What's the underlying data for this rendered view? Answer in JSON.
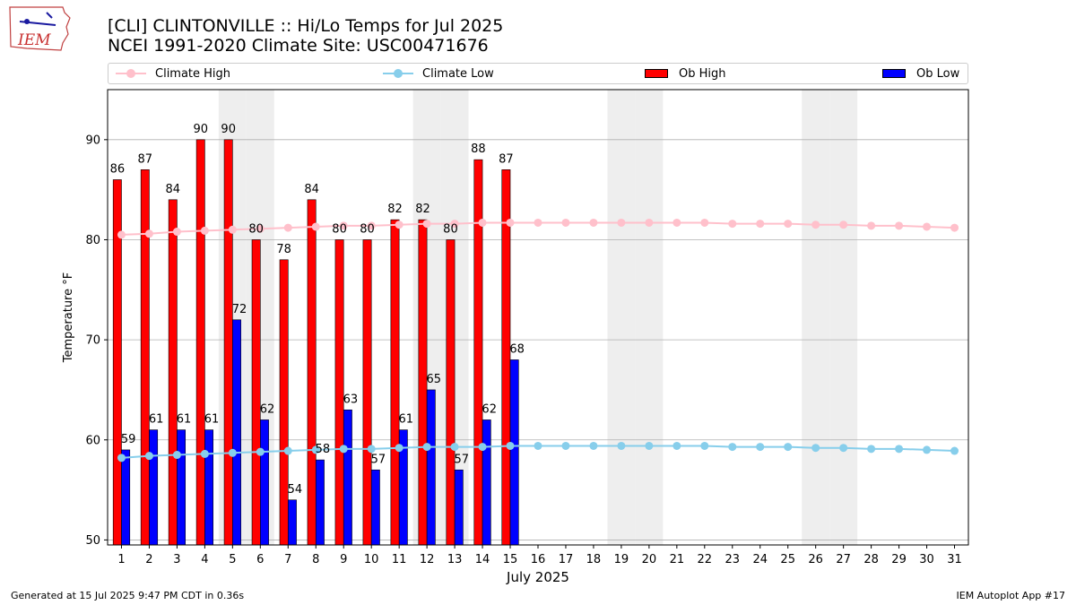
{
  "header": {
    "title_line1": "[CLI] CLINTONVILLE :: Hi/Lo Temps for Jul 2025",
    "title_line2": "NCEI 1991-2020 Climate Site: USC00471676",
    "logo_text": "IEM"
  },
  "footer": {
    "left": "Generated at 15 Jul 2025 9:47 PM CDT in 0.36s",
    "right": "IEM Autoplot App #17"
  },
  "colors": {
    "ob_high": "#ff0000",
    "ob_low": "#0000ff",
    "climate_high": "#ffc0cb",
    "climate_low": "#87ceeb",
    "weekend_band": "#eeeeee",
    "grid": "#b0b0b0"
  },
  "chart_data": {
    "type": "bar",
    "xlabel": "July 2025",
    "ylabel": "Temperature $^\\circ$F",
    "ylim": [
      49.5,
      95
    ],
    "yticks": [
      50,
      60,
      70,
      80,
      90
    ],
    "grid": "horizontal",
    "legend_position": "top",
    "legend": [
      "Climate High",
      "Climate Low",
      "Ob High",
      "Ob Low"
    ],
    "categories": [
      "1",
      "2",
      "3",
      "4",
      "5",
      "6",
      "7",
      "8",
      "9",
      "10",
      "11",
      "12",
      "13",
      "14",
      "15",
      "16",
      "17",
      "18",
      "19",
      "20",
      "21",
      "22",
      "23",
      "24",
      "25",
      "26",
      "27",
      "28",
      "29",
      "30",
      "31"
    ],
    "weekend_days": [
      5,
      6,
      12,
      13,
      19,
      20,
      26,
      27
    ],
    "series": [
      {
        "name": "Ob High",
        "kind": "bar",
        "values": [
          86,
          87,
          84,
          90,
          90,
          80,
          78,
          84,
          80,
          80,
          82,
          82,
          80,
          88,
          87,
          null,
          null,
          null,
          null,
          null,
          null,
          null,
          null,
          null,
          null,
          null,
          null,
          null,
          null,
          null,
          null
        ],
        "value_labels": [
          "86",
          "87",
          "84",
          "90",
          "90",
          "80",
          "78",
          "84",
          "80",
          "80",
          "82",
          "82",
          "80",
          "88",
          "87"
        ]
      },
      {
        "name": "Ob Low",
        "kind": "bar",
        "values": [
          59,
          61,
          61,
          61,
          72,
          62,
          54,
          58,
          63,
          57,
          61,
          65,
          57,
          62,
          68,
          null,
          null,
          null,
          null,
          null,
          null,
          null,
          null,
          null,
          null,
          null,
          null,
          null,
          null,
          null,
          null
        ],
        "value_labels": [
          "59",
          "61",
          "61",
          "61",
          "72",
          "62",
          "54",
          "58",
          "63",
          "57",
          "61",
          "65",
          "57",
          "62",
          "68"
        ]
      },
      {
        "name": "Climate High",
        "kind": "line",
        "values": [
          80.5,
          80.6,
          80.8,
          80.9,
          81.0,
          81.1,
          81.2,
          81.3,
          81.4,
          81.4,
          81.5,
          81.6,
          81.6,
          81.7,
          81.7,
          81.7,
          81.7,
          81.7,
          81.7,
          81.7,
          81.7,
          81.7,
          81.6,
          81.6,
          81.6,
          81.5,
          81.5,
          81.4,
          81.4,
          81.3,
          81.2
        ]
      },
      {
        "name": "Climate Low",
        "kind": "line",
        "values": [
          58.2,
          58.4,
          58.5,
          58.6,
          58.7,
          58.8,
          58.9,
          59.0,
          59.1,
          59.1,
          59.2,
          59.3,
          59.3,
          59.3,
          59.4,
          59.4,
          59.4,
          59.4,
          59.4,
          59.4,
          59.4,
          59.4,
          59.3,
          59.3,
          59.3,
          59.2,
          59.2,
          59.1,
          59.1,
          59.0,
          58.9
        ]
      }
    ]
  }
}
